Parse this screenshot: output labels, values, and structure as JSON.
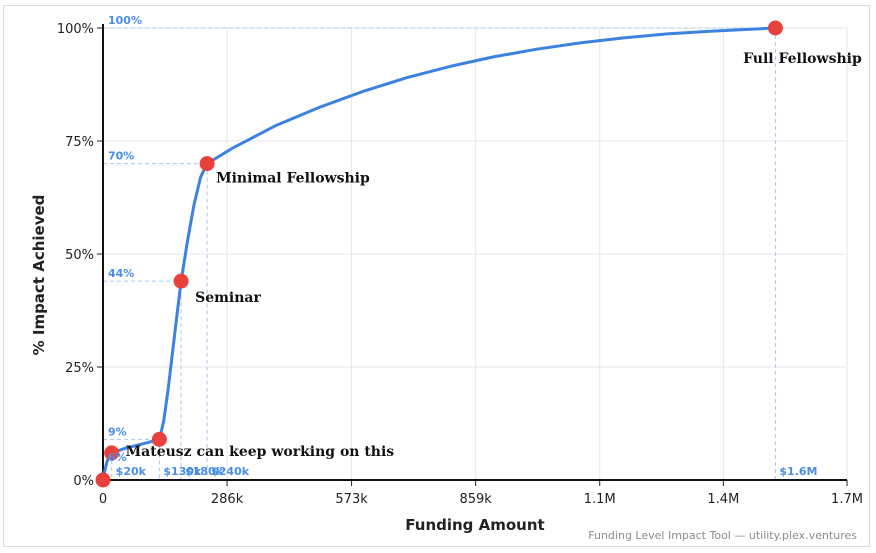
{
  "footer": "Funding Level Impact Tool — utility.plex.ventures",
  "colors": {
    "curve": "#3c82e0",
    "point": "#e8413c",
    "guide": "#a9c8ef",
    "guide_text": "#4a8ee6",
    "grid": "#e6e6e6"
  },
  "chart_data": {
    "type": "line",
    "title": "",
    "xlabel": "Funding Amount",
    "ylabel": "% Impact Achieved",
    "xlim": [
      0,
      1715000
    ],
    "ylim": [
      0,
      100
    ],
    "x_ticks": [
      {
        "value": 0,
        "label": "0"
      },
      {
        "value": 286000,
        "label": "286k"
      },
      {
        "value": 573000,
        "label": "573k"
      },
      {
        "value": 859000,
        "label": "859k"
      },
      {
        "value": 1145000,
        "label": "1.1M"
      },
      {
        "value": 1430000,
        "label": "1.4M"
      },
      {
        "value": 1715000,
        "label": "1.7M"
      }
    ],
    "y_ticks": [
      {
        "value": 0,
        "label": "0%"
      },
      {
        "value": 25,
        "label": "25%"
      },
      {
        "value": 50,
        "label": "50%"
      },
      {
        "value": 75,
        "label": "75%"
      },
      {
        "value": 100,
        "label": "100%"
      }
    ],
    "grid": true,
    "points": [
      {
        "x": 0,
        "y": 0,
        "name": "",
        "x_label": "",
        "y_label": ""
      },
      {
        "x": 20000,
        "y": 6,
        "name": "Mateusz can keep working on this",
        "x_label": "$20k",
        "y_label": "6%"
      },
      {
        "x": 130000,
        "y": 9,
        "name": "",
        "x_label": "$130k",
        "y_label": "9%"
      },
      {
        "x": 180000,
        "y": 44,
        "name": "Seminar",
        "x_label": "$180k",
        "y_label": "44%"
      },
      {
        "x": 240000,
        "y": 70,
        "name": "Minimal Fellowship",
        "x_label": "$240k",
        "y_label": "70%"
      },
      {
        "x": 1550000,
        "y": 100,
        "name": "Full Fellowship",
        "x_label": "$1.6M",
        "y_label": "100%"
      }
    ],
    "curve": [
      [
        0,
        0
      ],
      [
        5000,
        2.5
      ],
      [
        10000,
        4.3
      ],
      [
        20000,
        6
      ],
      [
        50000,
        7
      ],
      [
        100000,
        8.2
      ],
      [
        130000,
        9
      ],
      [
        140000,
        13
      ],
      [
        150000,
        20
      ],
      [
        160000,
        28
      ],
      [
        170000,
        36
      ],
      [
        180000,
        44
      ],
      [
        195000,
        53
      ],
      [
        210000,
        61
      ],
      [
        225000,
        67
      ],
      [
        240000,
        70
      ],
      [
        300000,
        73.5
      ],
      [
        400000,
        78.5
      ],
      [
        500000,
        82.5
      ],
      [
        600000,
        86
      ],
      [
        700000,
        89
      ],
      [
        800000,
        91.5
      ],
      [
        900000,
        93.6
      ],
      [
        1000000,
        95.3
      ],
      [
        1100000,
        96.7
      ],
      [
        1200000,
        97.8
      ],
      [
        1300000,
        98.7
      ],
      [
        1400000,
        99.3
      ],
      [
        1550000,
        100
      ]
    ]
  }
}
